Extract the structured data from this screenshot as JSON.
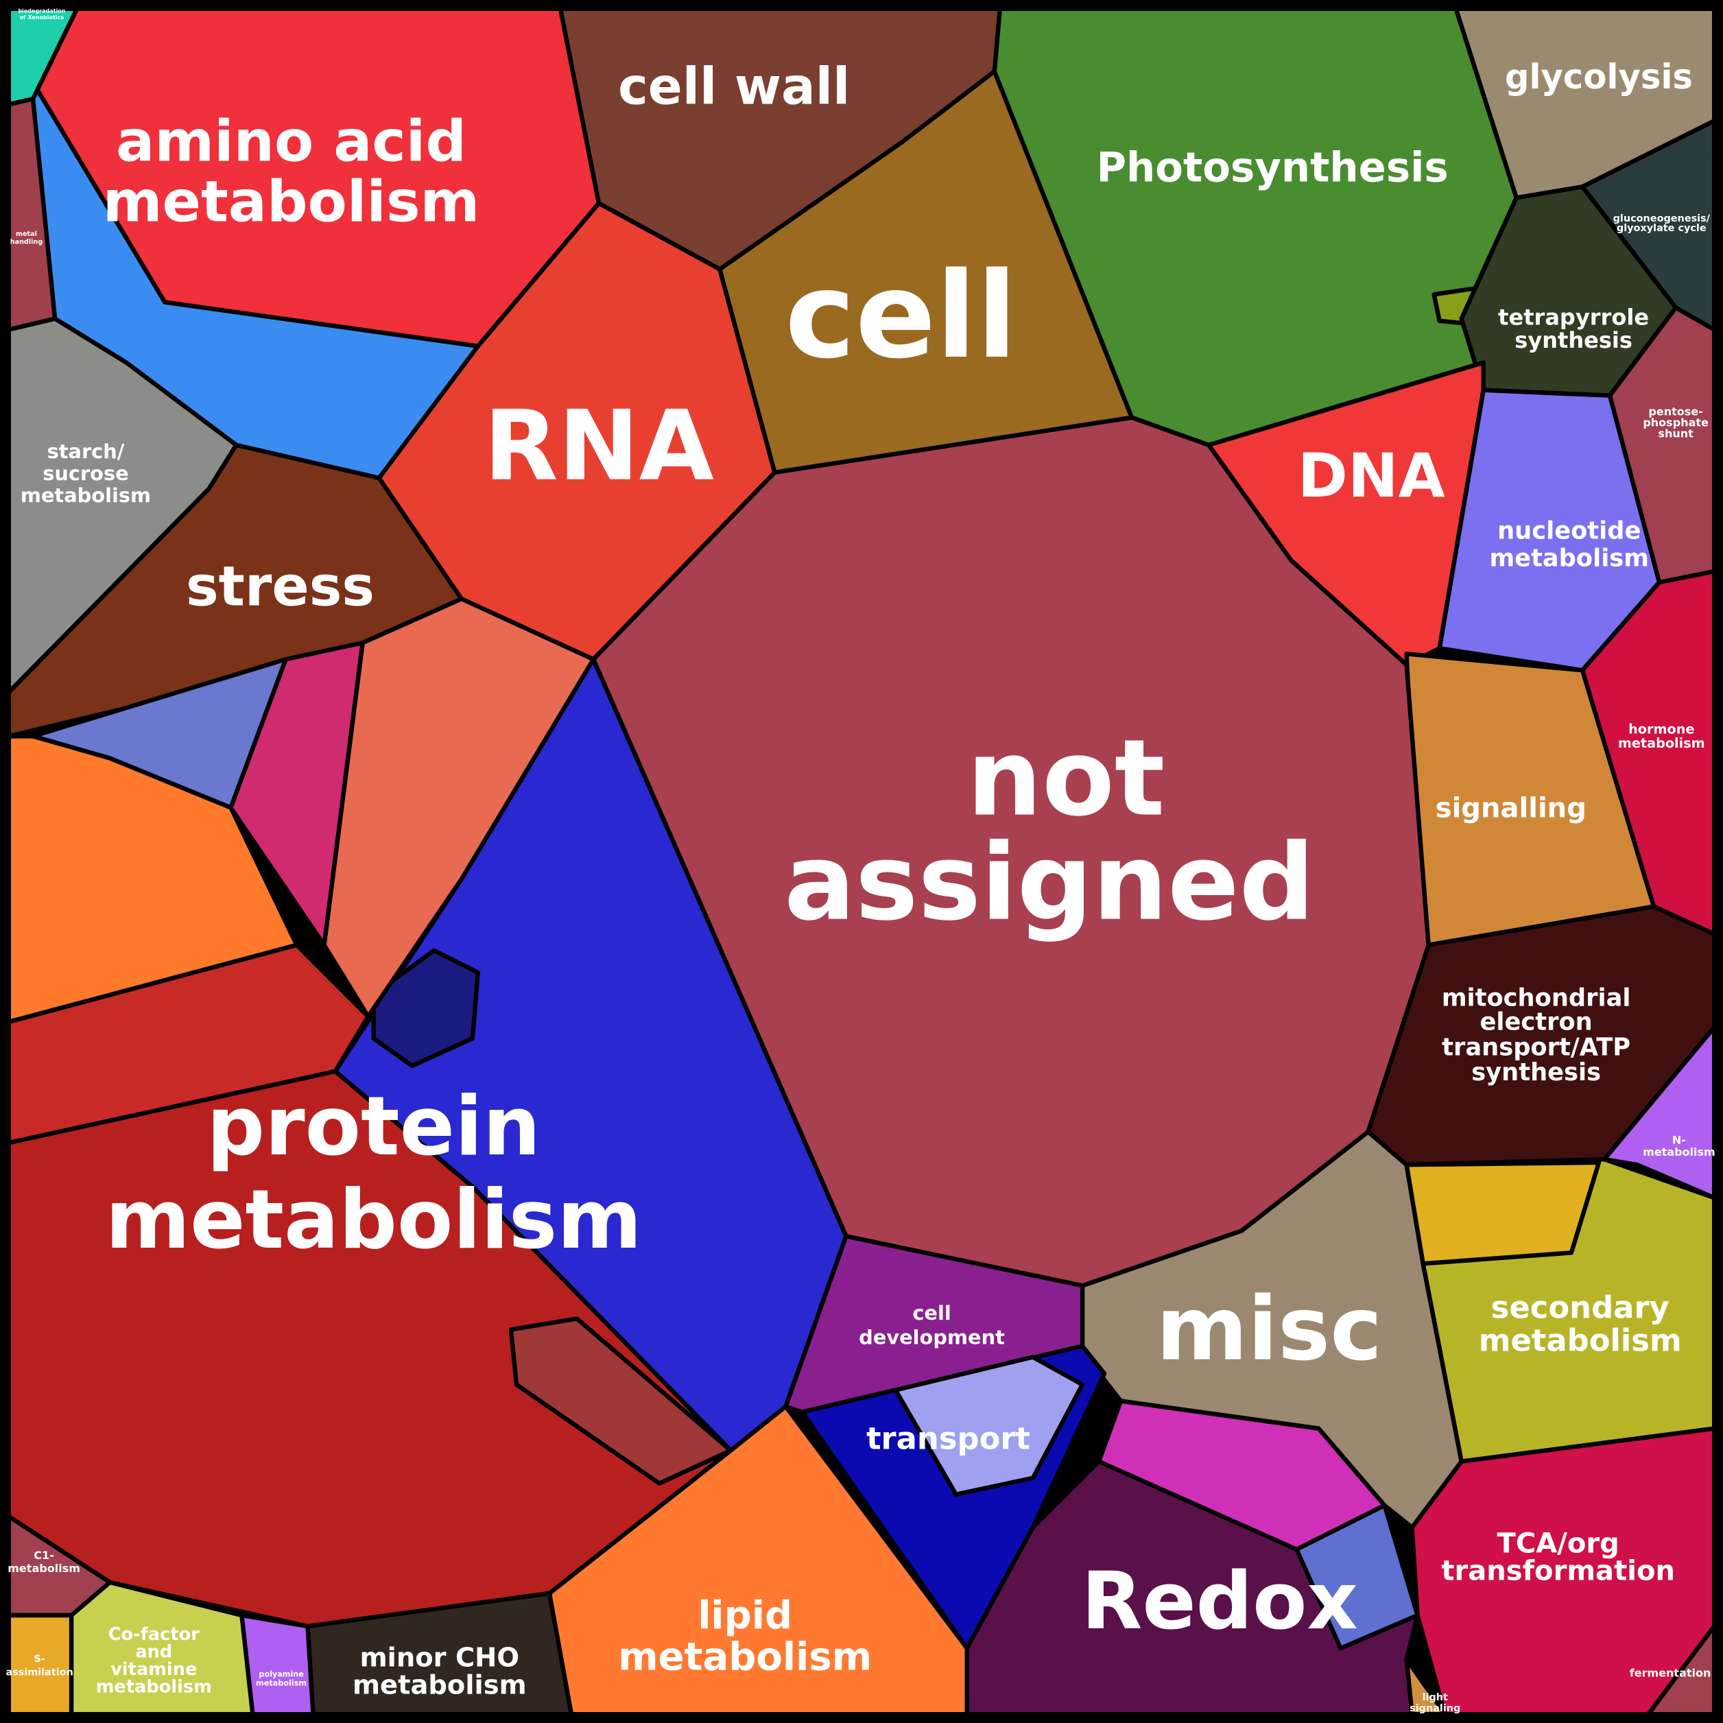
{
  "regions": [
    {
      "lines": [
        "amino acid",
        "metabolism"
      ]
    },
    {
      "lines": [
        "biodegradation",
        "of Xenobiotics"
      ]
    },
    {
      "lines": [
        "metal",
        "handling"
      ]
    },
    {
      "lines": [
        "starch/",
        "sucrose",
        "metabolism"
      ]
    },
    {
      "lines": [
        "stress"
      ]
    },
    {
      "lines": [
        "cell wall"
      ]
    },
    {
      "lines": [
        "RNA"
      ]
    },
    {
      "lines": [
        "cell"
      ]
    },
    {
      "lines": [
        "Photosynthesis"
      ]
    },
    {
      "lines": [
        "glycolysis"
      ]
    },
    {
      "lines": [
        "gluconeogenesis/",
        "glyoxylate cycle"
      ]
    },
    {
      "lines": [
        "tetrapyrrole",
        "synthesis"
      ]
    },
    {
      "lines": [
        "pentose-",
        "phosphate",
        "shunt"
      ]
    },
    {
      "lines": [
        "DNA"
      ]
    },
    {
      "lines": [
        "nucleotide",
        "metabolism"
      ]
    },
    {
      "lines": [
        "hormone",
        "metabolism"
      ]
    },
    {
      "lines": [
        "signalling"
      ]
    },
    {
      "lines": [
        "mitochondrial",
        "electron",
        "transport/ATP",
        "synthesis"
      ]
    },
    {
      "lines": [
        "N-",
        "metabolism"
      ]
    },
    {
      "lines": [
        "secondary",
        "metabolism"
      ]
    },
    {
      "lines": [
        "TCA/org",
        "transformation"
      ]
    },
    {
      "lines": [
        "fermentation"
      ]
    },
    {
      "lines": [
        "light",
        "signaling"
      ]
    },
    {
      "lines": [
        "misc"
      ]
    },
    {
      "lines": [
        "not",
        "assigned"
      ]
    },
    {
      "lines": [
        "protein",
        "metabolism"
      ]
    },
    {
      "lines": [
        "C1-",
        "metabolism"
      ]
    },
    {
      "lines": [
        "S-",
        "assimilation"
      ]
    },
    {
      "lines": [
        "Co-factor",
        "and",
        "vitamine",
        "metabolism"
      ]
    },
    {
      "lines": [
        "polyamine",
        "metabolism"
      ]
    },
    {
      "lines": [
        "minor CHO",
        "metabolism"
      ]
    },
    {
      "lines": [
        "lipid",
        "metabolism"
      ]
    },
    {
      "lines": [
        "cell",
        "development"
      ]
    },
    {
      "lines": [
        "transport"
      ]
    },
    {
      "lines": [
        "Redox"
      ]
    }
  ]
}
